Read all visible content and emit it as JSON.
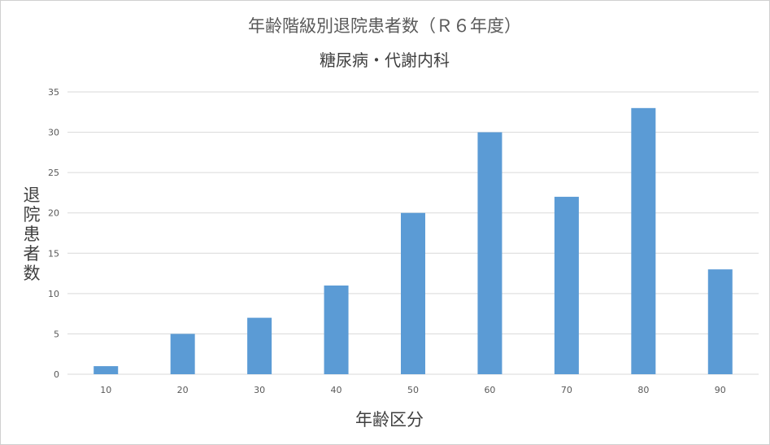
{
  "chart_data": {
    "type": "bar",
    "title": "年齢階級別退院患者数（Ｒ６年度）",
    "subtitle": "糖尿病・代謝内科",
    "xlabel": "年齢区分",
    "ylabel": "退院患者数",
    "categories": [
      "10",
      "20",
      "30",
      "40",
      "50",
      "60",
      "70",
      "80",
      "90"
    ],
    "values": [
      1,
      5,
      7,
      11,
      20,
      30,
      22,
      33,
      13
    ],
    "ylim": [
      0,
      35
    ],
    "yticks": [
      "0",
      "5",
      "10",
      "15",
      "20",
      "25",
      "30",
      "35"
    ],
    "grid": true,
    "legend": "none",
    "bar_color": "#5b9bd5",
    "grid_color": "#d9d9d9"
  }
}
